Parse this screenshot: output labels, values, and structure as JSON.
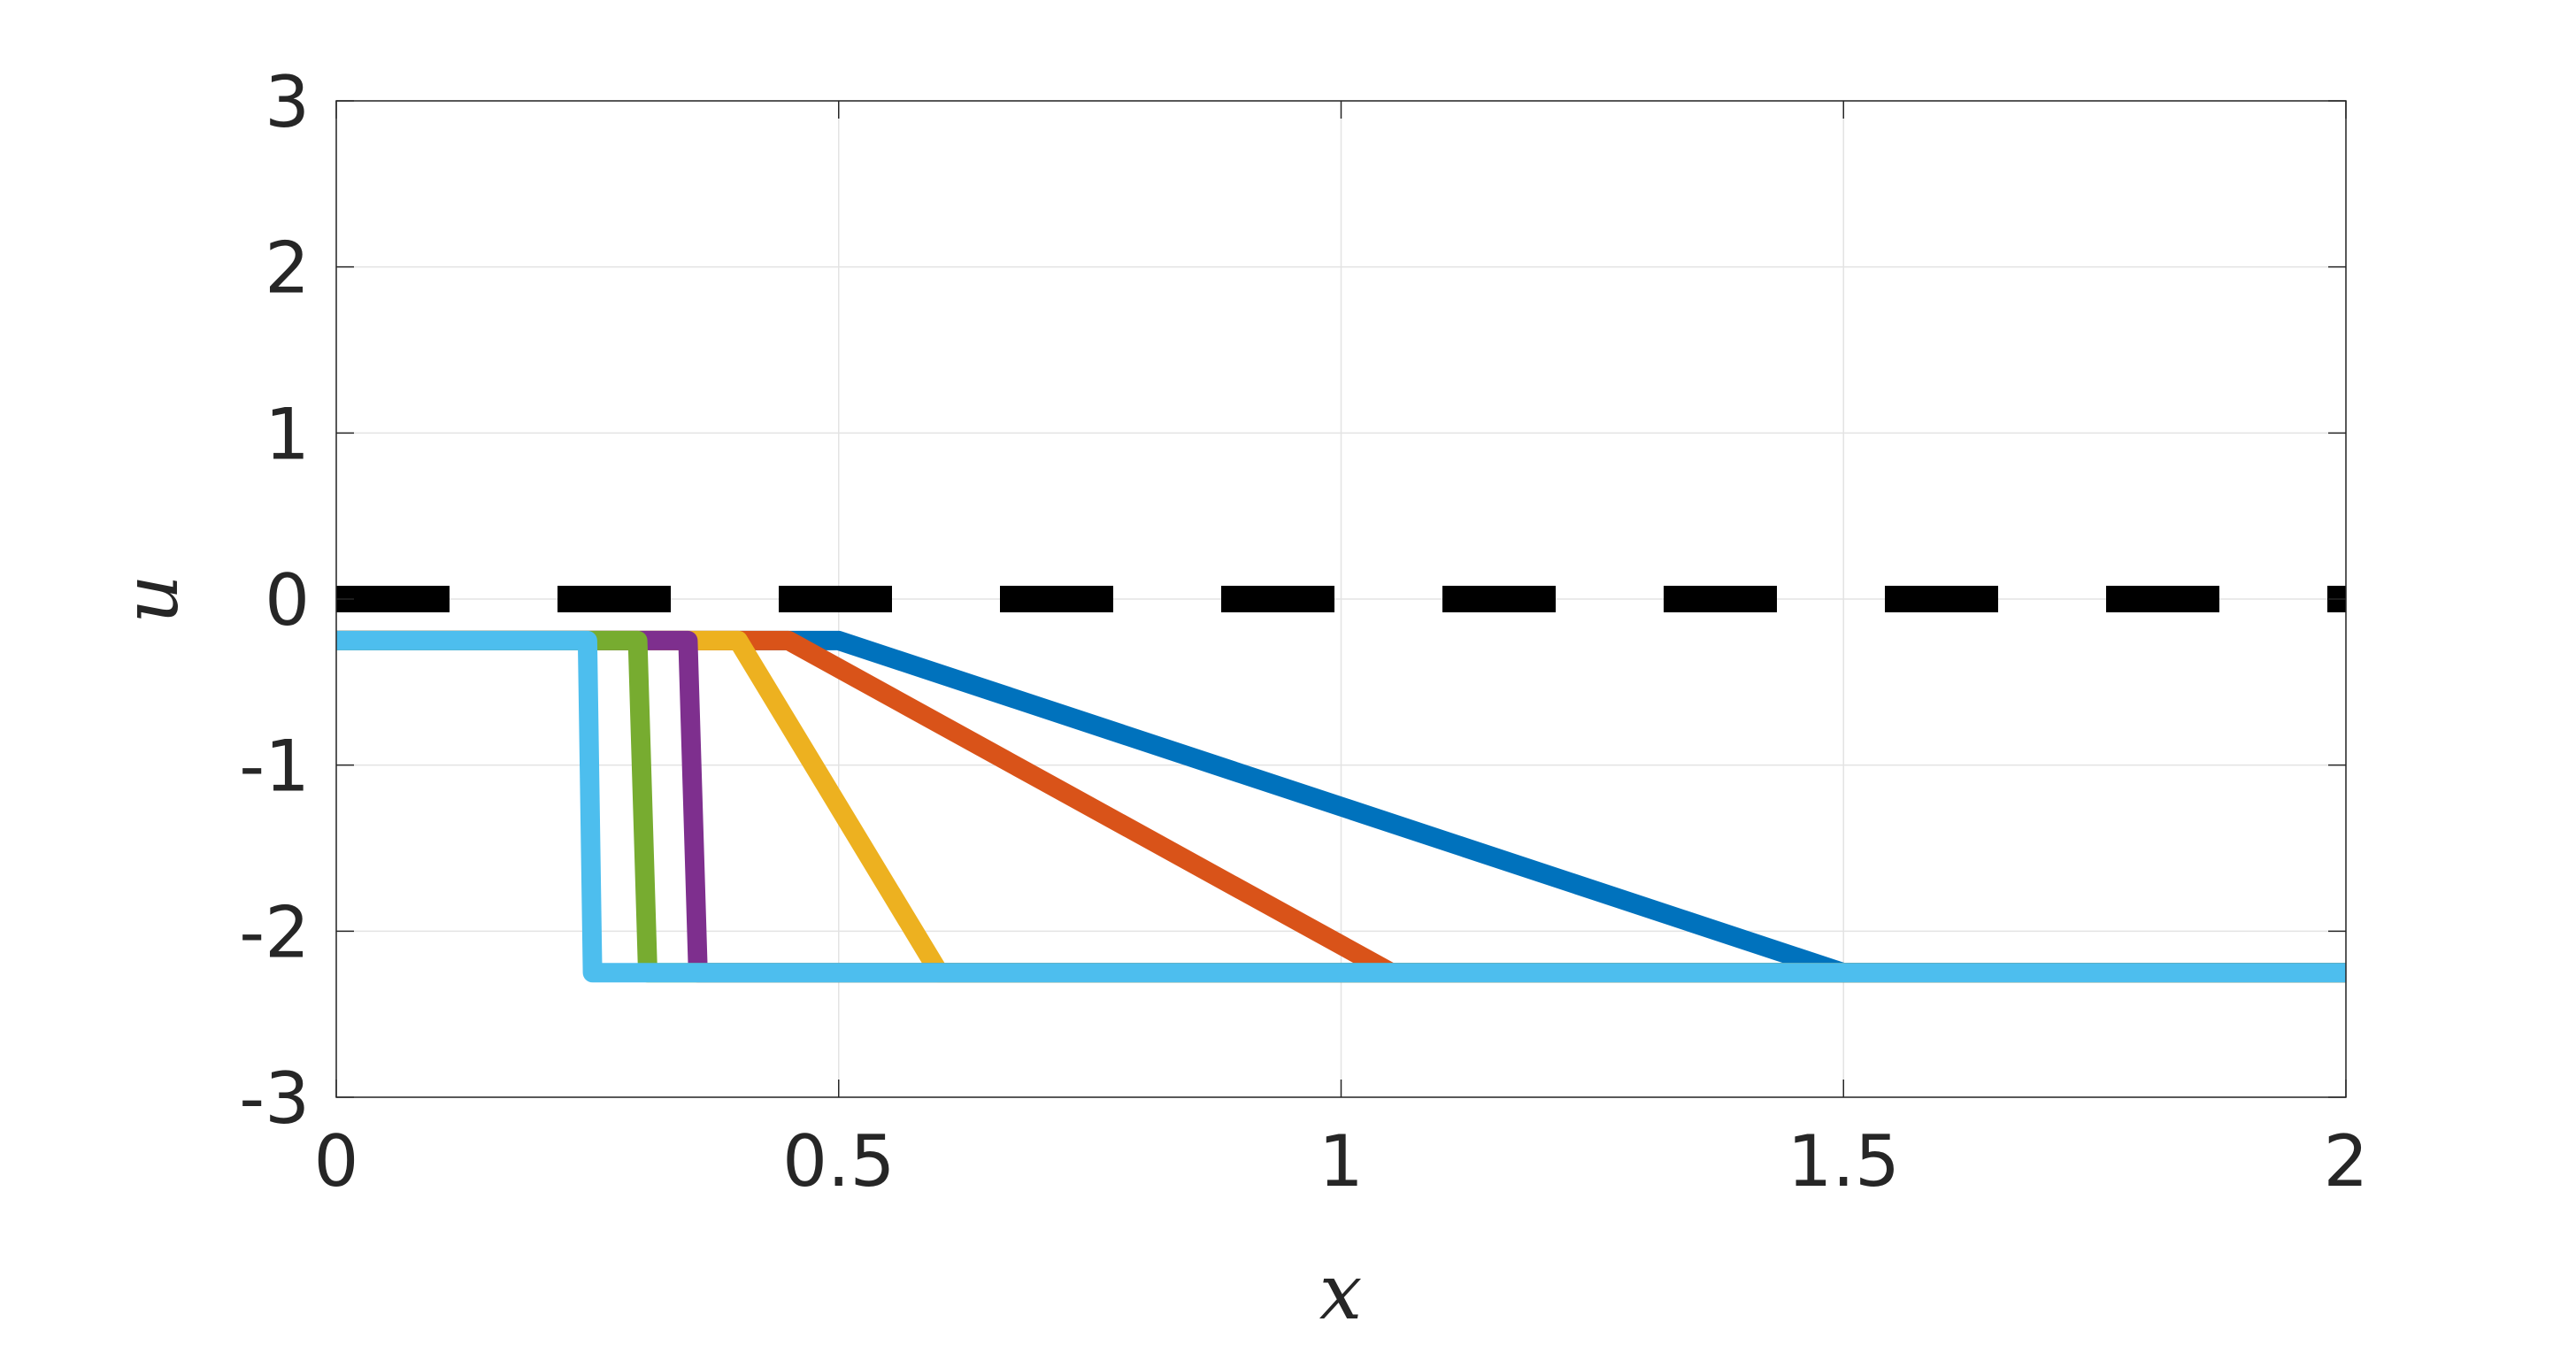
{
  "chart_data": {
    "type": "line",
    "title": "",
    "xlabel": "x",
    "ylabel": "u",
    "xlim": [
      0,
      2
    ],
    "ylim": [
      -3,
      3
    ],
    "x_ticks": [
      0,
      0.5,
      1,
      1.5,
      2
    ],
    "x_tick_labels": [
      "0",
      "0.5",
      "1",
      "1.5",
      "2"
    ],
    "y_ticks": [
      -3,
      -2,
      -1,
      0,
      1,
      2,
      3
    ],
    "y_tick_labels": [
      "-3",
      "-2",
      "-1",
      "0",
      "1",
      "2",
      "3"
    ],
    "grid": true,
    "legend": "none",
    "reference_line": {
      "y": 0,
      "style": "dashed",
      "color": "#000000"
    },
    "series": [
      {
        "color": "#0072BD",
        "points": [
          [
            0,
            -0.25
          ],
          [
            0.5,
            -0.25
          ],
          [
            1.5,
            -2.25
          ],
          [
            2,
            -2.25
          ]
        ]
      },
      {
        "color": "#D95319",
        "points": [
          [
            0,
            -0.25
          ],
          [
            0.45,
            -0.25
          ],
          [
            1.05,
            -2.25
          ],
          [
            2,
            -2.25
          ]
        ]
      },
      {
        "color": "#EDB120",
        "points": [
          [
            0,
            -0.25
          ],
          [
            0.4,
            -0.25
          ],
          [
            0.6,
            -2.25
          ],
          [
            2,
            -2.25
          ]
        ]
      },
      {
        "color": "#7E2F8E",
        "points": [
          [
            0,
            -0.25
          ],
          [
            0.35,
            -0.25
          ],
          [
            0.36,
            -2.25
          ],
          [
            2,
            -2.25
          ]
        ]
      },
      {
        "color": "#77AC30",
        "points": [
          [
            0,
            -0.25
          ],
          [
            0.3,
            -0.25
          ],
          [
            0.31,
            -2.25
          ],
          [
            2,
            -2.25
          ]
        ]
      },
      {
        "color": "#4DBEEE",
        "points": [
          [
            0,
            -0.25
          ],
          [
            0.25,
            -0.25
          ],
          [
            0.255,
            -2.25
          ],
          [
            2,
            -2.25
          ]
        ]
      }
    ]
  }
}
